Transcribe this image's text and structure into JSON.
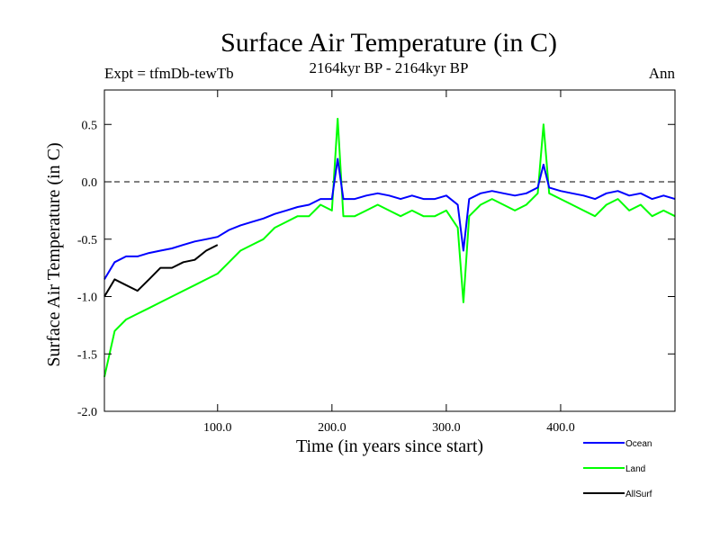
{
  "chart_data": {
    "type": "line",
    "title": "Surface Air Temperature (in C)",
    "experiment": "Expt = tfmDb-tewTb",
    "period": "2164kyr BP - 2164kyr BP",
    "season": "Ann",
    "xlabel": "Time (in years since start)",
    "ylabel": "Surface Air Temperature (in C)",
    "xlim": [
      1,
      500
    ],
    "ylim": [
      -2.0,
      0.8
    ],
    "xticks": [
      100,
      200,
      300,
      400
    ],
    "xtick_labels": [
      "100.0",
      "200.0",
      "300.0",
      "400.0"
    ],
    "yticks": [
      -2.0,
      -1.5,
      -1.0,
      -0.5,
      0.0,
      0.5
    ],
    "ytick_labels": [
      "-2.0",
      "-1.5",
      "-1.0",
      "-0.5",
      "0.0",
      "0.5"
    ],
    "reference_line": 0.0,
    "series": [
      {
        "name": "Land",
        "color": "#00ff00",
        "x": [
          1,
          10,
          20,
          30,
          40,
          50,
          60,
          70,
          80,
          90,
          100,
          110,
          120,
          130,
          140,
          150,
          160,
          170,
          180,
          190,
          200,
          205,
          210,
          220,
          230,
          240,
          250,
          260,
          270,
          280,
          290,
          300,
          310,
          315,
          320,
          330,
          340,
          350,
          360,
          370,
          380,
          385,
          390,
          400,
          410,
          420,
          430,
          440,
          450,
          460,
          470,
          480,
          490,
          500
        ],
        "values": [
          -1.7,
          -1.3,
          -1.2,
          -1.15,
          -1.1,
          -1.05,
          -1.0,
          -0.95,
          -0.9,
          -0.85,
          -0.8,
          -0.7,
          -0.6,
          -0.55,
          -0.5,
          -0.4,
          -0.35,
          -0.3,
          -0.3,
          -0.2,
          -0.25,
          0.55,
          -0.3,
          -0.3,
          -0.25,
          -0.2,
          -0.25,
          -0.3,
          -0.25,
          -0.3,
          -0.3,
          -0.25,
          -0.4,
          -1.05,
          -0.3,
          -0.2,
          -0.15,
          -0.2,
          -0.25,
          -0.2,
          -0.1,
          0.5,
          -0.1,
          -0.15,
          -0.2,
          -0.25,
          -0.3,
          -0.2,
          -0.15,
          -0.25,
          -0.2,
          -0.3,
          -0.25,
          -0.3
        ]
      },
      {
        "name": "Ocean",
        "color": "#0000ff",
        "x": [
          1,
          10,
          20,
          30,
          40,
          50,
          60,
          70,
          80,
          90,
          100,
          110,
          120,
          130,
          140,
          150,
          160,
          170,
          180,
          190,
          200,
          205,
          210,
          220,
          230,
          240,
          250,
          260,
          270,
          280,
          290,
          300,
          310,
          315,
          320,
          330,
          340,
          350,
          360,
          370,
          380,
          385,
          390,
          400,
          410,
          420,
          430,
          440,
          450,
          460,
          470,
          480,
          490,
          500
        ],
        "values": [
          -0.85,
          -0.7,
          -0.65,
          -0.65,
          -0.62,
          -0.6,
          -0.58,
          -0.55,
          -0.52,
          -0.5,
          -0.48,
          -0.42,
          -0.38,
          -0.35,
          -0.32,
          -0.28,
          -0.25,
          -0.22,
          -0.2,
          -0.15,
          -0.15,
          0.2,
          -0.15,
          -0.15,
          -0.12,
          -0.1,
          -0.12,
          -0.15,
          -0.12,
          -0.15,
          -0.15,
          -0.12,
          -0.2,
          -0.6,
          -0.15,
          -0.1,
          -0.08,
          -0.1,
          -0.12,
          -0.1,
          -0.05,
          0.15,
          -0.05,
          -0.08,
          -0.1,
          -0.12,
          -0.15,
          -0.1,
          -0.08,
          -0.12,
          -0.1,
          -0.15,
          -0.12,
          -0.15
        ]
      },
      {
        "name": "AllSurf",
        "color": "#000000",
        "x": [
          1,
          10,
          20,
          30,
          40,
          50,
          60,
          70,
          80,
          90,
          100
        ],
        "values": [
          -1.0,
          -0.85,
          -0.9,
          -0.95,
          -0.85,
          -0.75,
          -0.75,
          -0.7,
          -0.68,
          -0.6,
          -0.55
        ]
      }
    ],
    "legend": [
      {
        "name": "Ocean",
        "color": "#0000ff"
      },
      {
        "name": "Land",
        "color": "#00ff00"
      },
      {
        "name": "AllSurf",
        "color": "#000000"
      }
    ]
  }
}
